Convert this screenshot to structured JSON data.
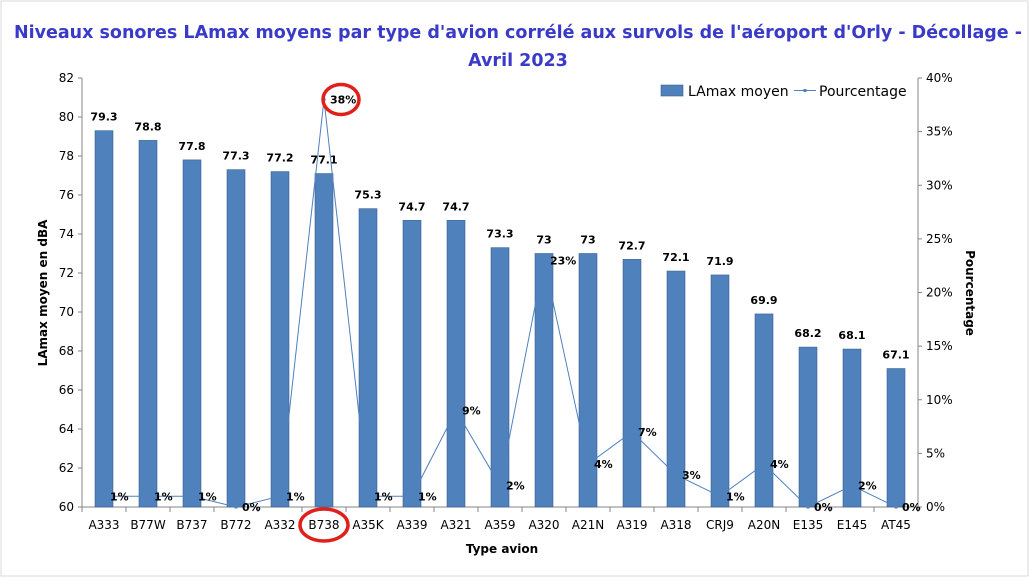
{
  "chart_data": {
    "type": "bar",
    "title_line1": "Niveaux sonores LAmax moyens par type d'avion corrélé aux survols de l'aéroport d'Orly - Décollage -",
    "title_line2": "Avril 2023",
    "xlabel": "Type avion",
    "ylabel": "LAmax moyen en dBA",
    "y2label": "Pourcentage",
    "ylim": [
      60,
      82
    ],
    "y2lim": [
      0,
      40
    ],
    "yticks": [
      60,
      62,
      64,
      66,
      68,
      70,
      72,
      74,
      76,
      78,
      80,
      82
    ],
    "y2ticks": [
      "0%",
      "5%",
      "10%",
      "15%",
      "20%",
      "25%",
      "30%",
      "35%",
      "40%"
    ],
    "categories": [
      "A333",
      "B77W",
      "B737",
      "B772",
      "A332",
      "B738",
      "A35K",
      "A339",
      "A321",
      "A359",
      "A320",
      "A21N",
      "A319",
      "A318",
      "CRJ9",
      "A20N",
      "E135",
      "E145",
      "AT45"
    ],
    "series": [
      {
        "name": "LAmax moyen",
        "axis": "left",
        "type": "bar",
        "color": "#4f81bd",
        "values": [
          79.3,
          78.8,
          77.8,
          77.3,
          77.2,
          77.1,
          75.3,
          74.7,
          74.7,
          73.3,
          73,
          73,
          72.7,
          72.1,
          71.9,
          69.9,
          68.2,
          68.1,
          67.1
        ]
      },
      {
        "name": "Pourcentage",
        "axis": "right",
        "type": "line",
        "color": "#4f81bd",
        "values": [
          1,
          1,
          1,
          0,
          1,
          38,
          1,
          1,
          9,
          2,
          23,
          4,
          7,
          3,
          1,
          4,
          0,
          2,
          0
        ],
        "labels": [
          "1%",
          "1%",
          "1%",
          "0%",
          "1%",
          "38%",
          "1%",
          "1%",
          "9%",
          "2%",
          "23%",
          "4%",
          "7%",
          "3%",
          "1%",
          "4%",
          "0%",
          "2%",
          "0%"
        ]
      }
    ],
    "legend": "top-right",
    "grid": false,
    "highlight": {
      "category": "B738",
      "color": "#e0201b"
    }
  }
}
